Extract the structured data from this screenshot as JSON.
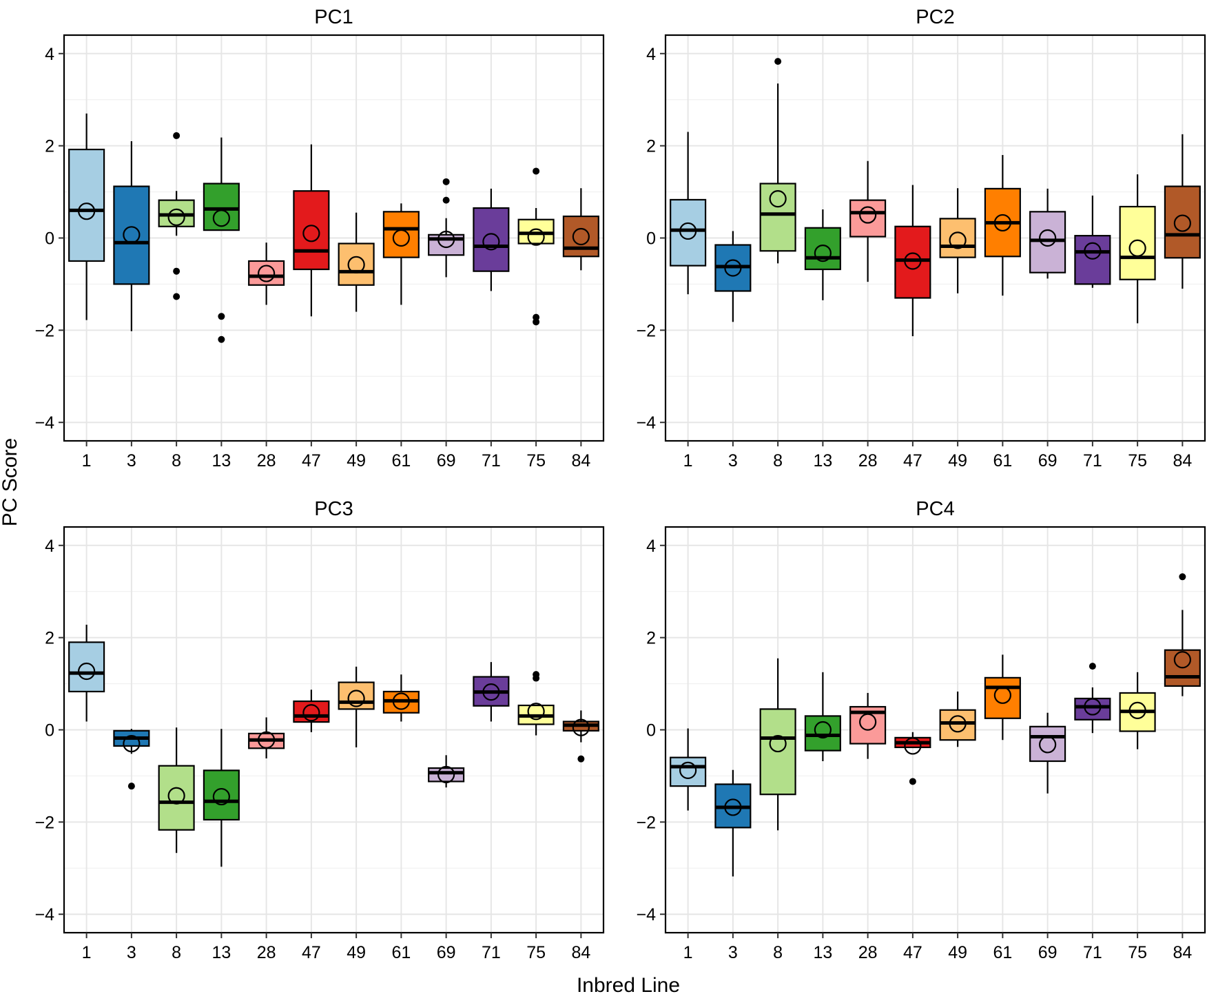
{
  "figure": {
    "ylabel": "PC Score",
    "xlabel": "Inbred Line",
    "ylim": [
      -4.4,
      4.4
    ],
    "yticks": [
      -4,
      -2,
      0,
      2,
      4
    ],
    "categories": [
      "1",
      "3",
      "8",
      "13",
      "28",
      "47",
      "49",
      "61",
      "69",
      "71",
      "75",
      "84"
    ],
    "colors": [
      "#A6CEE3",
      "#1F78B4",
      "#B2DF8A",
      "#33A02C",
      "#FB9A99",
      "#E31A1C",
      "#FDBF6F",
      "#FF7F00",
      "#CAB2D6",
      "#6A3D9A",
      "#FFFF99",
      "#B15928"
    ]
  },
  "chart_data": [
    {
      "type": "box",
      "title": "PC1",
      "xlabel": "Inbred Line",
      "ylabel": "PC Score",
      "ylim": [
        -4.4,
        4.4
      ],
      "categories": [
        "1",
        "3",
        "8",
        "13",
        "28",
        "47",
        "49",
        "61",
        "69",
        "71",
        "75",
        "84"
      ],
      "boxes": [
        {
          "line": "1",
          "q1": -0.5,
          "median": 0.6,
          "q3": 1.92,
          "whisker_low": -1.78,
          "whisker_high": 2.7,
          "mean": 0.58,
          "outliers": []
        },
        {
          "line": "3",
          "q1": -1.0,
          "median": -0.1,
          "q3": 1.12,
          "whisker_low": -2.02,
          "whisker_high": 2.1,
          "mean": 0.07,
          "outliers": []
        },
        {
          "line": "8",
          "q1": 0.25,
          "median": 0.5,
          "q3": 0.82,
          "whisker_low": 0.05,
          "whisker_high": 1.02,
          "mean": 0.45,
          "outliers": [
            2.22,
            -0.72,
            -1.27
          ]
        },
        {
          "line": "13",
          "q1": 0.17,
          "median": 0.63,
          "q3": 1.18,
          "whisker_low": 0.17,
          "whisker_high": 2.18,
          "mean": 0.43,
          "outliers": [
            -1.7,
            -2.2
          ]
        },
        {
          "line": "28",
          "q1": -1.02,
          "median": -0.83,
          "q3": -0.5,
          "whisker_low": -1.45,
          "whisker_high": -0.1,
          "mean": -0.77,
          "outliers": []
        },
        {
          "line": "47",
          "q1": -0.68,
          "median": -0.28,
          "q3": 1.02,
          "whisker_low": -1.7,
          "whisker_high": 2.03,
          "mean": 0.1,
          "outliers": []
        },
        {
          "line": "49",
          "q1": -1.02,
          "median": -0.73,
          "q3": -0.12,
          "whisker_low": -1.6,
          "whisker_high": 0.55,
          "mean": -0.58,
          "outliers": []
        },
        {
          "line": "61",
          "q1": -0.42,
          "median": 0.2,
          "q3": 0.57,
          "whisker_low": -1.45,
          "whisker_high": 0.75,
          "mean": 0.0,
          "outliers": []
        },
        {
          "line": "69",
          "q1": -0.37,
          "median": -0.02,
          "q3": 0.07,
          "whisker_low": -0.85,
          "whisker_high": 0.43,
          "mean": -0.03,
          "outliers": [
            1.22,
            0.82
          ]
        },
        {
          "line": "71",
          "q1": -0.72,
          "median": -0.18,
          "q3": 0.65,
          "whisker_low": -1.15,
          "whisker_high": 1.07,
          "mean": -0.08,
          "outliers": []
        },
        {
          "line": "75",
          "q1": -0.12,
          "median": 0.1,
          "q3": 0.4,
          "whisker_low": -0.12,
          "whisker_high": 0.65,
          "mean": 0.02,
          "outliers": [
            1.45,
            -1.72,
            -1.82
          ]
        },
        {
          "line": "84",
          "q1": -0.4,
          "median": -0.22,
          "q3": 0.47,
          "whisker_low": -0.7,
          "whisker_high": 1.08,
          "mean": 0.03,
          "outliers": []
        }
      ]
    },
    {
      "type": "box",
      "title": "PC2",
      "xlabel": "Inbred Line",
      "ylabel": "PC Score",
      "ylim": [
        -4.4,
        4.4
      ],
      "categories": [
        "1",
        "3",
        "8",
        "13",
        "28",
        "47",
        "49",
        "61",
        "69",
        "71",
        "75",
        "84"
      ],
      "boxes": [
        {
          "line": "1",
          "q1": -0.6,
          "median": 0.17,
          "q3": 0.83,
          "whisker_low": -1.22,
          "whisker_high": 2.3,
          "mean": 0.15,
          "outliers": []
        },
        {
          "line": "3",
          "q1": -1.15,
          "median": -0.62,
          "q3": -0.15,
          "whisker_low": -1.82,
          "whisker_high": 0.15,
          "mean": -0.65,
          "outliers": []
        },
        {
          "line": "8",
          "q1": -0.28,
          "median": 0.52,
          "q3": 1.18,
          "whisker_low": -0.55,
          "whisker_high": 3.35,
          "mean": 0.85,
          "outliers": [
            3.83
          ]
        },
        {
          "line": "13",
          "q1": -0.68,
          "median": -0.43,
          "q3": 0.22,
          "whisker_low": -1.35,
          "whisker_high": 0.62,
          "mean": -0.33,
          "outliers": []
        },
        {
          "line": "28",
          "q1": 0.03,
          "median": 0.55,
          "q3": 0.82,
          "whisker_low": -0.95,
          "whisker_high": 1.67,
          "mean": 0.5,
          "outliers": []
        },
        {
          "line": "47",
          "q1": -1.3,
          "median": -0.48,
          "q3": 0.25,
          "whisker_low": -2.13,
          "whisker_high": 1.15,
          "mean": -0.5,
          "outliers": []
        },
        {
          "line": "49",
          "q1": -0.42,
          "median": -0.18,
          "q3": 0.42,
          "whisker_low": -1.2,
          "whisker_high": 1.08,
          "mean": -0.05,
          "outliers": []
        },
        {
          "line": "61",
          "q1": -0.4,
          "median": 0.33,
          "q3": 1.07,
          "whisker_low": -1.25,
          "whisker_high": 1.8,
          "mean": 0.33,
          "outliers": []
        },
        {
          "line": "69",
          "q1": -0.75,
          "median": -0.05,
          "q3": 0.57,
          "whisker_low": -0.88,
          "whisker_high": 1.07,
          "mean": 0.0,
          "outliers": []
        },
        {
          "line": "71",
          "q1": -1.0,
          "median": -0.3,
          "q3": 0.05,
          "whisker_low": -1.08,
          "whisker_high": 0.92,
          "mean": -0.28,
          "outliers": []
        },
        {
          "line": "75",
          "q1": -0.9,
          "median": -0.42,
          "q3": 0.68,
          "whisker_low": -1.85,
          "whisker_high": 1.38,
          "mean": -0.22,
          "outliers": []
        },
        {
          "line": "84",
          "q1": -0.43,
          "median": 0.07,
          "q3": 1.12,
          "whisker_low": -1.1,
          "whisker_high": 2.25,
          "mean": 0.32,
          "outliers": []
        }
      ]
    },
    {
      "type": "box",
      "title": "PC3",
      "xlabel": "Inbred Line",
      "ylabel": "PC Score",
      "ylim": [
        -4.4,
        4.4
      ],
      "categories": [
        "1",
        "3",
        "8",
        "13",
        "28",
        "47",
        "49",
        "61",
        "69",
        "71",
        "75",
        "84"
      ],
      "boxes": [
        {
          "line": "1",
          "q1": 0.83,
          "median": 1.23,
          "q3": 1.9,
          "whisker_low": 0.18,
          "whisker_high": 2.28,
          "mean": 1.27,
          "outliers": []
        },
        {
          "line": "3",
          "q1": -0.35,
          "median": -0.18,
          "q3": -0.02,
          "whisker_low": -0.52,
          "whisker_high": 0.02,
          "mean": -0.3,
          "outliers": [
            -1.22
          ]
        },
        {
          "line": "8",
          "q1": -2.17,
          "median": -1.57,
          "q3": -0.78,
          "whisker_low": -2.67,
          "whisker_high": 0.05,
          "mean": -1.43,
          "outliers": []
        },
        {
          "line": "13",
          "q1": -1.95,
          "median": -1.55,
          "q3": -0.88,
          "whisker_low": -2.97,
          "whisker_high": 0.02,
          "mean": -1.45,
          "outliers": []
        },
        {
          "line": "28",
          "q1": -0.4,
          "median": -0.22,
          "q3": -0.08,
          "whisker_low": -0.62,
          "whisker_high": 0.27,
          "mean": -0.22,
          "outliers": []
        },
        {
          "line": "47",
          "q1": 0.17,
          "median": 0.3,
          "q3": 0.62,
          "whisker_low": -0.05,
          "whisker_high": 0.87,
          "mean": 0.37,
          "outliers": []
        },
        {
          "line": "49",
          "q1": 0.45,
          "median": 0.6,
          "q3": 1.03,
          "whisker_low": -0.38,
          "whisker_high": 1.37,
          "mean": 0.68,
          "outliers": []
        },
        {
          "line": "61",
          "q1": 0.37,
          "median": 0.63,
          "q3": 0.83,
          "whisker_low": 0.18,
          "whisker_high": 1.2,
          "mean": 0.62,
          "outliers": []
        },
        {
          "line": "69",
          "q1": -1.12,
          "median": -0.93,
          "q3": -0.83,
          "whisker_low": -1.25,
          "whisker_high": -0.55,
          "mean": -0.97,
          "outliers": []
        },
        {
          "line": "71",
          "q1": 0.52,
          "median": 0.82,
          "q3": 1.15,
          "whisker_low": 0.18,
          "whisker_high": 1.47,
          "mean": 0.82,
          "outliers": []
        },
        {
          "line": "75",
          "q1": 0.12,
          "median": 0.3,
          "q3": 0.53,
          "whisker_low": -0.12,
          "whisker_high": 0.53,
          "mean": 0.4,
          "outliers": [
            1.2,
            1.12
          ]
        },
        {
          "line": "84",
          "q1": -0.02,
          "median": 0.1,
          "q3": 0.18,
          "whisker_low": -0.27,
          "whisker_high": 0.42,
          "mean": 0.05,
          "outliers": [
            -0.63
          ]
        }
      ]
    },
    {
      "type": "box",
      "title": "PC4",
      "xlabel": "Inbred Line",
      "ylabel": "PC Score",
      "ylim": [
        -4.4,
        4.4
      ],
      "categories": [
        "1",
        "3",
        "8",
        "13",
        "28",
        "47",
        "49",
        "61",
        "69",
        "71",
        "75",
        "84"
      ],
      "boxes": [
        {
          "line": "1",
          "q1": -1.22,
          "median": -0.8,
          "q3": -0.6,
          "whisker_low": -1.75,
          "whisker_high": 0.03,
          "mean": -0.88,
          "outliers": []
        },
        {
          "line": "3",
          "q1": -2.12,
          "median": -1.68,
          "q3": -1.18,
          "whisker_low": -3.18,
          "whisker_high": -0.87,
          "mean": -1.68,
          "outliers": []
        },
        {
          "line": "8",
          "q1": -1.4,
          "median": -0.18,
          "q3": 0.45,
          "whisker_low": -2.18,
          "whisker_high": 1.55,
          "mean": -0.3,
          "outliers": []
        },
        {
          "line": "13",
          "q1": -0.45,
          "median": -0.12,
          "q3": 0.3,
          "whisker_low": -0.68,
          "whisker_high": 1.25,
          "mean": 0.0,
          "outliers": []
        },
        {
          "line": "28",
          "q1": -0.3,
          "median": 0.38,
          "q3": 0.5,
          "whisker_low": -0.63,
          "whisker_high": 0.8,
          "mean": 0.17,
          "outliers": []
        },
        {
          "line": "47",
          "q1": -0.38,
          "median": -0.28,
          "q3": -0.17,
          "whisker_low": -0.38,
          "whisker_high": -0.05,
          "mean": -0.35,
          "outliers": [
            -1.12
          ]
        },
        {
          "line": "49",
          "q1": -0.22,
          "median": 0.15,
          "q3": 0.43,
          "whisker_low": -0.37,
          "whisker_high": 0.83,
          "mean": 0.13,
          "outliers": []
        },
        {
          "line": "61",
          "q1": 0.25,
          "median": 0.92,
          "q3": 1.13,
          "whisker_low": -0.22,
          "whisker_high": 1.63,
          "mean": 0.75,
          "outliers": []
        },
        {
          "line": "69",
          "q1": -0.68,
          "median": -0.15,
          "q3": 0.07,
          "whisker_low": -1.38,
          "whisker_high": 0.37,
          "mean": -0.32,
          "outliers": []
        },
        {
          "line": "71",
          "q1": 0.22,
          "median": 0.5,
          "q3": 0.68,
          "whisker_low": -0.07,
          "whisker_high": 0.92,
          "mean": 0.5,
          "outliers": [
            1.38
          ]
        },
        {
          "line": "75",
          "q1": -0.03,
          "median": 0.4,
          "q3": 0.8,
          "whisker_low": -0.42,
          "whisker_high": 1.25,
          "mean": 0.42,
          "outliers": []
        },
        {
          "line": "84",
          "q1": 0.95,
          "median": 1.15,
          "q3": 1.73,
          "whisker_low": 0.73,
          "whisker_high": 2.6,
          "mean": 1.52,
          "outliers": [
            3.32
          ]
        }
      ]
    }
  ]
}
